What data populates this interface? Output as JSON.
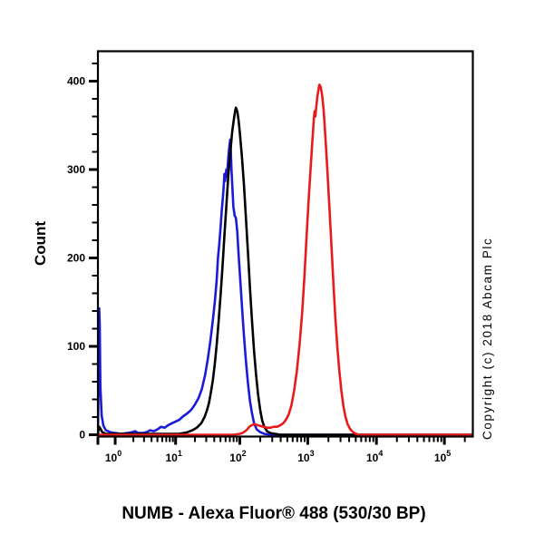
{
  "chart_data": {
    "type": "line",
    "subtype": "flow-cytometry-overlay-histogram",
    "title": "NUMB - Alexa Fluor® 488 (530/30 BP)",
    "ylabel": "Count",
    "xlabel": "",
    "copyright": "Copyright (c) 2018 Abcam Plc",
    "x_scale": "log",
    "grid": "off",
    "legend": "none",
    "ylim": [
      0,
      434
    ],
    "y_major_ticks": [
      0,
      100,
      200,
      300,
      400
    ],
    "y_minor_step": 20,
    "x_ticks": [
      {
        "log": 0,
        "base": "10",
        "exp": "0"
      },
      {
        "log": 1,
        "base": "10",
        "exp": "1"
      },
      {
        "log": 2,
        "base": "10",
        "exp": "2"
      },
      {
        "log": 3,
        "base": "10",
        "exp": "3"
      },
      {
        "log": 4,
        "base": "10",
        "exp": "4"
      },
      {
        "log": 5,
        "base": "10",
        "exp": "5"
      }
    ],
    "x_minor_subs": [
      2,
      3,
      4,
      5,
      6,
      7,
      8,
      9
    ],
    "colors": {
      "axis": "#000000",
      "blue_curve": "#1a1ad9",
      "black_curve": "#000000",
      "red_curve": "#e81b1b"
    },
    "series": [
      {
        "name": "blue-curve",
        "color": "#1a1ad9",
        "points": [
          [
            -0.28,
            0
          ],
          [
            -0.27,
            60
          ],
          [
            -0.26,
            143
          ],
          [
            -0.25,
            125
          ],
          [
            -0.24,
            55
          ],
          [
            -0.22,
            22
          ],
          [
            -0.19,
            10
          ],
          [
            -0.15,
            5
          ],
          [
            -0.08,
            3
          ],
          [
            0.0,
            2
          ],
          [
            0.1,
            1
          ],
          [
            0.2,
            2
          ],
          [
            0.28,
            3
          ],
          [
            0.33,
            4
          ],
          [
            0.38,
            2
          ],
          [
            0.45,
            2
          ],
          [
            0.52,
            3
          ],
          [
            0.58,
            5
          ],
          [
            0.64,
            4
          ],
          [
            0.7,
            6
          ],
          [
            0.76,
            9
          ],
          [
            0.82,
            8
          ],
          [
            0.88,
            11
          ],
          [
            0.94,
            13
          ],
          [
            1.0,
            15
          ],
          [
            1.06,
            17
          ],
          [
            1.12,
            21
          ],
          [
            1.18,
            24
          ],
          [
            1.24,
            28
          ],
          [
            1.3,
            34
          ],
          [
            1.36,
            42
          ],
          [
            1.41,
            52
          ],
          [
            1.46,
            68
          ],
          [
            1.5,
            85
          ],
          [
            1.54,
            105
          ],
          [
            1.58,
            130
          ],
          [
            1.61,
            150
          ],
          [
            1.64,
            175
          ],
          [
            1.66,
            200
          ],
          [
            1.68,
            215
          ],
          [
            1.7,
            235
          ],
          [
            1.72,
            255
          ],
          [
            1.74,
            272
          ],
          [
            1.75,
            282
          ],
          [
            1.76,
            295
          ],
          [
            1.77,
            287
          ],
          [
            1.79,
            300
          ],
          [
            1.8,
            292
          ],
          [
            1.82,
            312
          ],
          [
            1.83,
            322
          ],
          [
            1.85,
            334
          ],
          [
            1.86,
            320
          ],
          [
            1.87,
            300
          ],
          [
            1.89,
            272
          ],
          [
            1.9,
            258
          ],
          [
            1.92,
            248
          ],
          [
            1.94,
            245
          ],
          [
            1.96,
            230
          ],
          [
            1.98,
            205
          ],
          [
            2.0,
            183
          ],
          [
            2.03,
            148
          ],
          [
            2.06,
            113
          ],
          [
            2.09,
            84
          ],
          [
            2.12,
            58
          ],
          [
            2.15,
            38
          ],
          [
            2.18,
            24
          ],
          [
            2.21,
            13
          ],
          [
            2.25,
            6
          ],
          [
            2.3,
            3
          ],
          [
            2.36,
            1
          ],
          [
            2.45,
            0
          ],
          [
            3.0,
            0
          ],
          [
            4.0,
            0
          ],
          [
            5.43,
            0
          ]
        ]
      },
      {
        "name": "black-curve",
        "color": "#000000",
        "points": [
          [
            -0.28,
            0
          ],
          [
            -0.27,
            6
          ],
          [
            -0.26,
            9
          ],
          [
            -0.24,
            7
          ],
          [
            -0.21,
            3
          ],
          [
            -0.15,
            1
          ],
          [
            0.0,
            1
          ],
          [
            0.5,
            1
          ],
          [
            0.9,
            1
          ],
          [
            1.05,
            1
          ],
          [
            1.12,
            2
          ],
          [
            1.19,
            3
          ],
          [
            1.26,
            5
          ],
          [
            1.33,
            8
          ],
          [
            1.4,
            13
          ],
          [
            1.45,
            20
          ],
          [
            1.49,
            28
          ],
          [
            1.52,
            36
          ],
          [
            1.55,
            48
          ],
          [
            1.58,
            62
          ],
          [
            1.61,
            80
          ],
          [
            1.64,
            102
          ],
          [
            1.67,
            128
          ],
          [
            1.7,
            158
          ],
          [
            1.73,
            190
          ],
          [
            1.76,
            225
          ],
          [
            1.79,
            258
          ],
          [
            1.82,
            292
          ],
          [
            1.85,
            318
          ],
          [
            1.88,
            342
          ],
          [
            1.91,
            358
          ],
          [
            1.93,
            367
          ],
          [
            1.94,
            370
          ],
          [
            1.96,
            366
          ],
          [
            1.98,
            356
          ],
          [
            2.0,
            342
          ],
          [
            2.03,
            316
          ],
          [
            2.06,
            284
          ],
          [
            2.09,
            246
          ],
          [
            2.12,
            206
          ],
          [
            2.15,
            166
          ],
          [
            2.18,
            128
          ],
          [
            2.21,
            95
          ],
          [
            2.24,
            67
          ],
          [
            2.27,
            45
          ],
          [
            2.3,
            28
          ],
          [
            2.33,
            16
          ],
          [
            2.36,
            9
          ],
          [
            2.4,
            4
          ],
          [
            2.45,
            2
          ],
          [
            2.52,
            1
          ],
          [
            2.6,
            0
          ],
          [
            3.5,
            0
          ],
          [
            5.43,
            0
          ]
        ]
      },
      {
        "name": "red-curve",
        "color": "#e81b1b",
        "points": [
          [
            -0.28,
            0
          ],
          [
            0.0,
            0
          ],
          [
            1.0,
            0
          ],
          [
            1.9,
            0
          ],
          [
            2.0,
            1
          ],
          [
            2.04,
            2
          ],
          [
            2.08,
            4
          ],
          [
            2.11,
            6
          ],
          [
            2.14,
            9
          ],
          [
            2.18,
            11
          ],
          [
            2.22,
            12
          ],
          [
            2.26,
            11
          ],
          [
            2.3,
            10
          ],
          [
            2.35,
            9
          ],
          [
            2.4,
            8
          ],
          [
            2.45,
            8
          ],
          [
            2.5,
            9
          ],
          [
            2.55,
            9
          ],
          [
            2.6,
            11
          ],
          [
            2.64,
            13
          ],
          [
            2.68,
            17
          ],
          [
            2.72,
            23
          ],
          [
            2.76,
            33
          ],
          [
            2.8,
            50
          ],
          [
            2.84,
            72
          ],
          [
            2.88,
            102
          ],
          [
            2.92,
            140
          ],
          [
            2.95,
            178
          ],
          [
            2.98,
            220
          ],
          [
            3.01,
            262
          ],
          [
            3.04,
            300
          ],
          [
            3.07,
            335
          ],
          [
            3.09,
            358
          ],
          [
            3.1,
            366
          ],
          [
            3.11,
            360
          ],
          [
            3.12,
            368
          ],
          [
            3.14,
            382
          ],
          [
            3.16,
            392
          ],
          [
            3.17,
            396
          ],
          [
            3.19,
            393
          ],
          [
            3.21,
            384
          ],
          [
            3.23,
            368
          ],
          [
            3.25,
            345
          ],
          [
            3.28,
            308
          ],
          [
            3.31,
            265
          ],
          [
            3.34,
            221
          ],
          [
            3.37,
            176
          ],
          [
            3.4,
            135
          ],
          [
            3.43,
            100
          ],
          [
            3.46,
            72
          ],
          [
            3.49,
            50
          ],
          [
            3.52,
            32
          ],
          [
            3.55,
            20
          ],
          [
            3.58,
            12
          ],
          [
            3.62,
            6
          ],
          [
            3.66,
            3
          ],
          [
            3.7,
            1
          ],
          [
            3.76,
            0
          ],
          [
            4.5,
            0
          ],
          [
            5.43,
            0
          ]
        ]
      }
    ]
  }
}
